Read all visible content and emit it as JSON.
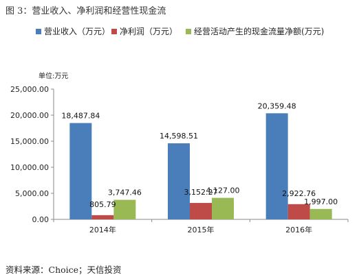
{
  "figure_title": "图 3：营业收入、净利润和经营性现金流",
  "source_text": "资料来源：Choice；天信投资",
  "chart_data": {
    "type": "bar",
    "title": "",
    "unit_label": "单位:万元",
    "categories": [
      "2014年",
      "2015年",
      "2016年"
    ],
    "series": [
      {
        "name": "营业收入（万元）",
        "values": [
          18487.84,
          14598.51,
          20359.48
        ],
        "labels": [
          "18,487.84",
          "14,598.51",
          "20,359.48"
        ]
      },
      {
        "name": "净利润（万元）",
        "values": [
          805.79,
          3152.27,
          2922.76
        ],
        "labels": [
          "805.79",
          "3,152.27",
          "2,922.76"
        ]
      },
      {
        "name": "经营活动产生的现金流量净额(万元)",
        "values": [
          3747.46,
          4127.0,
          1997.0
        ],
        "labels": [
          "3,747.46",
          "4,127.00",
          "1,997.00"
        ]
      }
    ],
    "colors": [
      "#4a7ebb",
      "#be4b48",
      "#98b954"
    ],
    "ylim": [
      0,
      25000
    ],
    "y_ticks": [
      "0.00",
      "5,000.00",
      "10,000.00",
      "15,000.00",
      "20,000.00",
      "25,000.00"
    ],
    "y_tick_values": [
      0,
      5000,
      10000,
      15000,
      20000,
      25000
    ],
    "grid": false,
    "legend_position": "top"
  }
}
